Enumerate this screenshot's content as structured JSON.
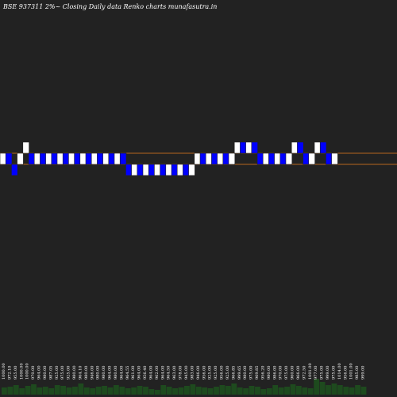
{
  "chart_data": {
    "type": "renko",
    "title": "BSE 937311 2%~  Closing Daily data  Renko  charts munafasutra.in",
    "reference_lines": [
      1000,
      980
    ],
    "brick_size": 20,
    "bricks": [
      {
        "dir": "up",
        "base": 980
      },
      {
        "dir": "down",
        "base": 980
      },
      {
        "dir": "down",
        "base": 960
      },
      {
        "dir": "up",
        "base": 980
      },
      {
        "dir": "up",
        "base": 1000
      },
      {
        "dir": "down",
        "base": 980
      },
      {
        "dir": "up",
        "base": 980
      },
      {
        "dir": "down",
        "base": 980
      },
      {
        "dir": "up",
        "base": 980
      },
      {
        "dir": "down",
        "base": 980
      },
      {
        "dir": "up",
        "base": 980
      },
      {
        "dir": "down",
        "base": 980
      },
      {
        "dir": "up",
        "base": 980
      },
      {
        "dir": "down",
        "base": 980
      },
      {
        "dir": "up",
        "base": 980
      },
      {
        "dir": "down",
        "base": 980
      },
      {
        "dir": "up",
        "base": 980
      },
      {
        "dir": "down",
        "base": 980
      },
      {
        "dir": "up",
        "base": 980
      },
      {
        "dir": "down",
        "base": 980
      },
      {
        "dir": "up",
        "base": 980
      },
      {
        "dir": "down",
        "base": 980
      },
      {
        "dir": "down",
        "base": 960
      },
      {
        "dir": "up",
        "base": 960
      },
      {
        "dir": "down",
        "base": 960
      },
      {
        "dir": "up",
        "base": 960
      },
      {
        "dir": "down",
        "base": 960
      },
      {
        "dir": "up",
        "base": 960
      },
      {
        "dir": "down",
        "base": 960
      },
      {
        "dir": "up",
        "base": 960
      },
      {
        "dir": "down",
        "base": 960
      },
      {
        "dir": "up",
        "base": 960
      },
      {
        "dir": "down",
        "base": 960
      },
      {
        "dir": "up",
        "base": 960
      },
      {
        "dir": "up",
        "base": 980
      },
      {
        "dir": "down",
        "base": 980
      },
      {
        "dir": "up",
        "base": 980
      },
      {
        "dir": "down",
        "base": 980
      },
      {
        "dir": "up",
        "base": 980
      },
      {
        "dir": "down",
        "base": 980
      },
      {
        "dir": "up",
        "base": 980
      },
      {
        "dir": "up",
        "base": 1000
      },
      {
        "dir": "down",
        "base": 1000
      },
      {
        "dir": "up",
        "base": 1000
      },
      {
        "dir": "down",
        "base": 1000
      },
      {
        "dir": "down",
        "base": 980
      },
      {
        "dir": "up",
        "base": 980
      },
      {
        "dir": "down",
        "base": 980
      },
      {
        "dir": "up",
        "base": 980
      },
      {
        "dir": "down",
        "base": 980
      },
      {
        "dir": "up",
        "base": 980
      },
      {
        "dir": "up",
        "base": 1000
      },
      {
        "dir": "down",
        "base": 1000
      },
      {
        "dir": "down",
        "base": 980
      },
      {
        "dir": "up",
        "base": 980
      },
      {
        "dir": "up",
        "base": 1000
      },
      {
        "dir": "down",
        "base": 1000
      },
      {
        "dir": "down",
        "base": 980
      },
      {
        "dir": "up",
        "base": 980
      }
    ],
    "close_labels": [
      "1000.00",
      "972.10",
      "955.00",
      "1000.00",
      "1000.00",
      "970.00",
      "964.00",
      "980.00",
      "987.05",
      "925.00",
      "975.00",
      "925.00",
      "980.00",
      "964.10",
      "980.00",
      "946.00",
      "980.00",
      "980.00",
      "964.00",
      "980.00",
      "964.00",
      "964.55",
      "961.00",
      "964.00",
      "956.40",
      "964.00",
      "962.00",
      "964.00",
      "964.50",
      "963.00",
      "978.00",
      "945.00",
      "983.00",
      "946.00",
      "956.00",
      "925.00",
      "925.00",
      "956.00",
      "925.00",
      "966.85",
      "999.65",
      "980.00",
      "975.00",
      "969.85",
      "956.20",
      "980.00",
      "986.00",
      "970.00",
      "975.00",
      "960.00",
      "966.00",
      "972.50",
      "1001.00",
      "977.00",
      "975.00",
      "999.00",
      "975.00",
      "1014.00",
      "956.00",
      "1001.00",
      "985.00",
      "999.00"
    ],
    "volume_heights": [
      9,
      10,
      12,
      8,
      11,
      13,
      9,
      10,
      8,
      12,
      11,
      9,
      10,
      14,
      9,
      8,
      10,
      11,
      9,
      12,
      10,
      8,
      9,
      11,
      10,
      7,
      6,
      12,
      10,
      8,
      9,
      11,
      13,
      10,
      9,
      8,
      10,
      12,
      11,
      14,
      9,
      8,
      11,
      10,
      7,
      8,
      12,
      9,
      10,
      13,
      11,
      9,
      8,
      20,
      16,
      12,
      14,
      12,
      10,
      9,
      12,
      10
    ]
  }
}
